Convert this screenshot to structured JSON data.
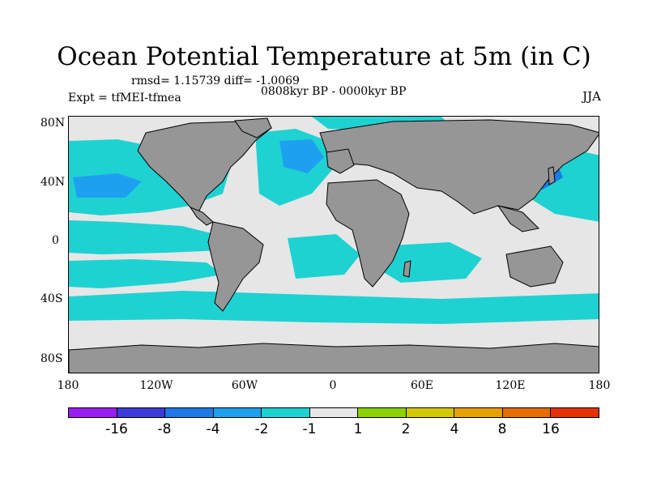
{
  "title": "Ocean Potential Temperature at 5m (in C)",
  "stats": "rmsd= 1.15739 diff= -1.0069",
  "period": "0808kyr BP - 0000kyr BP",
  "experiment": "Expt = tfMEI-tfmea",
  "season": "JJA",
  "axes": {
    "lat_labels": [
      "80N",
      "40N",
      "0",
      "40S",
      "80S"
    ],
    "lon_labels": [
      "180",
      "120W",
      "60W",
      "0",
      "60E",
      "120E",
      "180"
    ]
  },
  "colorbar": {
    "colors": [
      "#9a1ef0",
      "#3c3cd8",
      "#1e78e6",
      "#1ea0f0",
      "#1ed2d2",
      "#e6e6e6",
      "#8cd200",
      "#d2c800",
      "#e6a000",
      "#e66e00",
      "#e63200"
    ],
    "labels": [
      "-16",
      "-8",
      "-4",
      "-2",
      "-1",
      "1",
      "2",
      "4",
      "8",
      "16"
    ]
  },
  "palette": {
    "land": "#969696",
    "neutral": "#e6e6e6",
    "cyan": "#1ed2d2",
    "blue": "#1ea0f0",
    "deep_blue": "#1e78e6"
  }
}
